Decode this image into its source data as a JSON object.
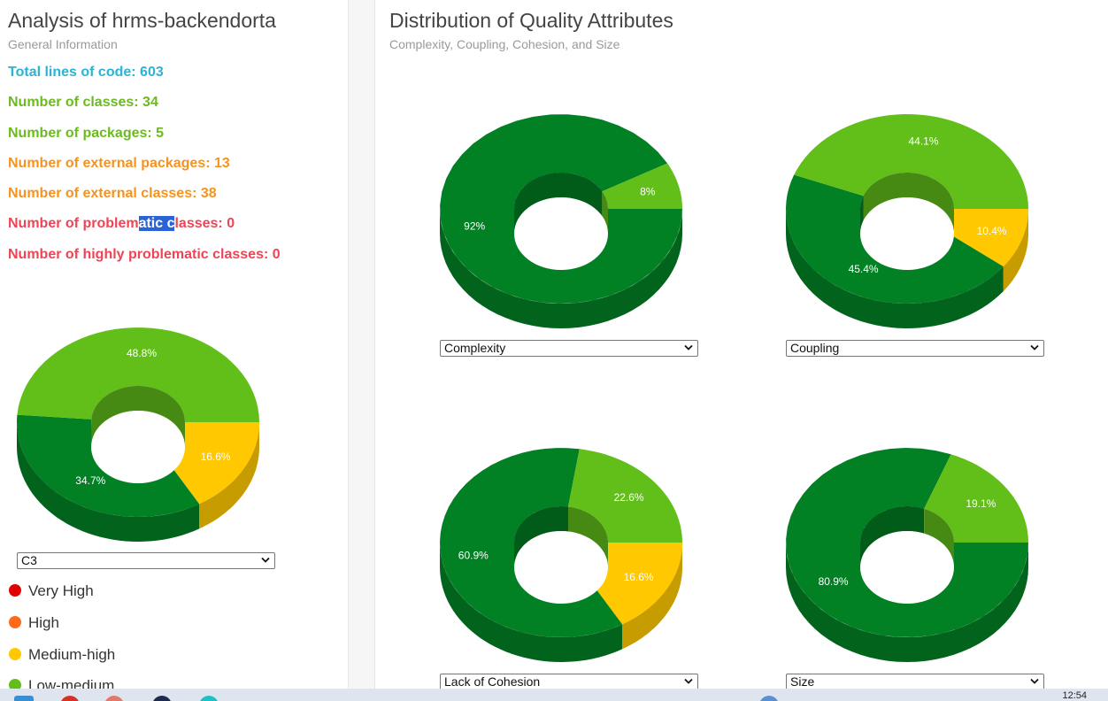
{
  "left": {
    "title": "Analysis of hrms-backendorta",
    "subtitle": "General Information",
    "stats": [
      {
        "label": "Total lines of code: 603",
        "color": "#2ab4d6"
      },
      {
        "label": "Number of classes: 34",
        "color": "#6cbb1e"
      },
      {
        "label": "Number of packages: 5",
        "color": "#6cbb1e"
      },
      {
        "label": "Number of external packages: 13",
        "color": "#f6921e"
      },
      {
        "label": "Number of external classes: 38",
        "color": "#f6921e"
      },
      {
        "label_before": "Number of problem",
        "label_highlight": "atic c",
        "label_after": "lasses: 0",
        "color": "#ee4455"
      },
      {
        "label": "Number of highly problematic classes: 0",
        "color": "#ee4455"
      }
    ],
    "selector_value": "C3",
    "legend": [
      {
        "label": "Very High",
        "color": "#e00000"
      },
      {
        "label": "High",
        "color": "#ff6a1a"
      },
      {
        "label": "Medium-high",
        "color": "#ffc800"
      },
      {
        "label": "Low-medium",
        "color": "#62bf1a"
      }
    ]
  },
  "right": {
    "title": "Distribution of Quality Attributes",
    "subtitle": "Complexity, Coupling, Cohesion, and Size"
  },
  "colors": {
    "dark_green": "#028024",
    "light_green": "#62bf1a",
    "yellow": "#ffc800"
  },
  "taskbar": {
    "time": "12:54"
  },
  "chart_data": [
    {
      "type": "pie",
      "id": "c3",
      "selector": "C3",
      "slices": [
        {
          "label": "16.6%",
          "value": 16.6,
          "color": "#ffc800"
        },
        {
          "label": "34.7%",
          "value": 34.7,
          "color": "#028024"
        },
        {
          "label": "48.8%",
          "value": 48.8,
          "color": "#62bf1a"
        }
      ]
    },
    {
      "type": "pie",
      "id": "complexity",
      "selector": "Complexity",
      "slices": [
        {
          "label": "92%",
          "value": 92,
          "color": "#028024"
        },
        {
          "label": "8%",
          "value": 8,
          "color": "#62bf1a"
        }
      ]
    },
    {
      "type": "pie",
      "id": "coupling",
      "selector": "Coupling",
      "slices": [
        {
          "label": "10.4%",
          "value": 10.4,
          "color": "#ffc800"
        },
        {
          "label": "45.4%",
          "value": 45.4,
          "color": "#028024"
        },
        {
          "label": "44.1%",
          "value": 44.1,
          "color": "#62bf1a"
        }
      ]
    },
    {
      "type": "pie",
      "id": "cohesion",
      "selector": "Lack of Cohesion",
      "slices": [
        {
          "label": "16.6%",
          "value": 16.6,
          "color": "#ffc800"
        },
        {
          "label": "60.9%",
          "value": 60.9,
          "color": "#028024"
        },
        {
          "label": "22.6%",
          "value": 22.6,
          "color": "#62bf1a"
        }
      ]
    },
    {
      "type": "pie",
      "id": "size",
      "selector": "Size",
      "slices": [
        {
          "label": "80.9%",
          "value": 80.9,
          "color": "#028024"
        },
        {
          "label": "19.1%",
          "value": 19.1,
          "color": "#62bf1a"
        }
      ]
    }
  ]
}
